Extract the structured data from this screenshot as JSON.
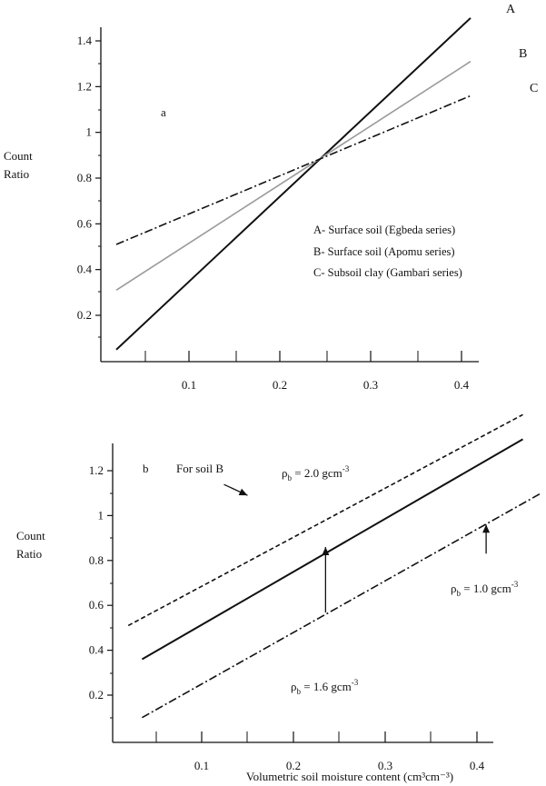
{
  "chart_data": [
    {
      "panel": "a",
      "type": "line",
      "ylabel": [
        "Count",
        "Ratio"
      ],
      "xlabel": "",
      "xlim": [
        0.0,
        0.42
      ],
      "ylim": [
        0.0,
        1.5
      ],
      "x_ticks": [
        "0.1",
        "0.2",
        "0.3",
        "0.4"
      ],
      "y_ticks": [
        "0.2",
        "0.4",
        "0.6",
        "0.8",
        "1",
        "1.2",
        "1.4"
      ],
      "legend": [
        "A- Surface soil (Egbeda series)",
        "B- Surface soil (Apomu series)",
        "C- Subsoil clay (Gambari series)"
      ],
      "series": [
        {
          "name": "A",
          "color": "#111111",
          "dash": "solid",
          "x": [
            0.02,
            0.41
          ],
          "y": [
            0.05,
            1.5
          ]
        },
        {
          "name": "B",
          "color": "#9a9a9a",
          "dash": "solid",
          "x": [
            0.02,
            0.41
          ],
          "y": [
            0.31,
            1.31
          ]
        },
        {
          "name": "C",
          "color": "#111111",
          "dash": "dashdot",
          "x": [
            0.02,
            0.41
          ],
          "y": [
            0.51,
            1.16
          ]
        }
      ]
    },
    {
      "panel": "b",
      "type": "line",
      "subtitle": "For soil B",
      "ylabel": [
        "Count",
        "Ratio"
      ],
      "xlabel": "Volumetric soil moisture content (cm³cm⁻³)",
      "xlim": [
        0.0,
        0.42
      ],
      "ylim": [
        0.0,
        1.3
      ],
      "x_ticks": [
        "0.1",
        "0.2",
        "0.3",
        "0.4"
      ],
      "y_ticks": [
        "0.2",
        "0.4",
        "0.6",
        "0.8",
        "1",
        "1.2"
      ],
      "series": [
        {
          "name": "2.0",
          "color": "#111111",
          "dash": "dashed",
          "x": [
            0.02,
            0.45
          ],
          "y": [
            0.51,
            1.45
          ]
        },
        {
          "name": "1.6",
          "color": "#111111",
          "dash": "solid",
          "x": [
            0.035,
            0.45
          ],
          "y": [
            0.36,
            1.34
          ]
        },
        {
          "name": "1.0",
          "color": "#111111",
          "dash": "dashdot",
          "x": [
            0.035,
            0.47
          ],
          "y": [
            0.1,
            1.1
          ]
        }
      ],
      "annotations": [
        {
          "label": "ρb = 2.0 gcm⁻³",
          "base": "ρ",
          "sub": "b",
          "text": " = 2.0 gcm",
          "sup": "-3",
          "x": 0.15,
          "y": 1.09
        },
        {
          "label": "ρb = 1.6 gcm⁻³",
          "base": "ρ",
          "sub": "b",
          "text": " = 1.6 gcm",
          "sup": "-3",
          "x": 0.235,
          "y": 0.86
        },
        {
          "label": "ρb = 1.0 gcm⁻³",
          "base": "ρ",
          "sub": "b",
          "text": " = 1.0 gcm",
          "sup": "-3",
          "x": 0.41,
          "y": 0.96
        }
      ]
    }
  ]
}
